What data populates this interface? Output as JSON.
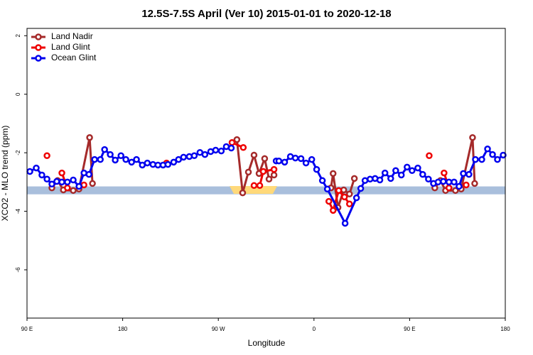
{
  "chart_data": {
    "type": "line",
    "title": "12.5S-7.5S April (Ver 10)   2015-01-01 to 2020-12-18",
    "xlabel": "Longitude",
    "ylabel": "XCO2 - MLO trend (ppm)",
    "xlim": [
      90,
      540
    ],
    "ylim": [
      -7.65,
      2.25
    ],
    "xticks": [
      {
        "value": 90,
        "label": "90 E"
      },
      180,
      {
        "value": 270,
        "label": "90 W"
      },
      {
        "value": 360,
        "label": "0"
      },
      {
        "value": 450,
        "label": "90 E"
      },
      {
        "value": 540,
        "label": "180"
      }
    ],
    "yticks": [
      2,
      0,
      -2,
      -4,
      -6
    ],
    "band": [
      -3.42,
      -3.15
    ],
    "band_color": "#a9bfdc",
    "legend": "top-left",
    "series": [
      {
        "name": "Land Nadir",
        "color": "#a52a2a",
        "x": [
          113.4,
          118.8,
          124.2,
          133.5,
          138.9,
          148.9,
          151.6,
          null,
          287.5,
          292.9,
          298.3,
          303.6,
          308.3,
          313.6,
          317.7,
          322.4,
          null,
          376,
          378,
          382.6,
          388,
          393.4,
          398,
          null,
          473.7,
          479,
          483.8,
          493.1,
          498.5,
          509.2,
          511.2
        ],
        "values": [
          -3.2,
          -2.95,
          -3.27,
          -3.29,
          -3.24,
          -1.48,
          -3.05,
          null,
          -1.55,
          -3.37,
          -2.66,
          -2.08,
          -2.71,
          -2.2,
          -2.9,
          -2.76,
          null,
          -3.2,
          -2.71,
          -3.87,
          -3.27,
          -3.41,
          -2.88,
          null,
          -3.2,
          -2.95,
          -3.29,
          -3.29,
          -3.24,
          -1.48,
          -3.05
        ]
      },
      {
        "name": "Land Glint",
        "color": "#ee0000",
        "x": [
          108.8,
          null,
          122.8,
          128,
          null,
          143.6,
          null,
          221.3,
          null,
          282.9,
          293.5,
          null,
          303.6,
          309,
          312.3,
          322.4,
          null,
          374,
          378,
          383.3,
          388.7,
          393.4,
          null,
          468.4,
          null,
          482.4,
          487,
          null,
          503.2
        ],
        "values": [
          -2.1,
          null,
          -2.69,
          -3.2,
          null,
          -3.1,
          null,
          -2.35,
          null,
          -1.65,
          -1.82,
          null,
          -3.12,
          -3.12,
          -2.64,
          -2.57,
          null,
          -3.66,
          -3.97,
          -3.29,
          -3.51,
          -3.75,
          null,
          -2.1,
          null,
          -2.69,
          -3.2,
          null,
          -3.1
        ]
      },
      {
        "name": "Ocean Glint",
        "color": "#0000ee",
        "x": [
          92.7,
          98.7,
          104,
          108.8,
          113.4,
          118,
          122.8,
          128,
          133.5,
          138.9,
          143.6,
          148.3,
          153.6,
          159,
          163,
          168.3,
          173,
          178.4,
          183,
          188.4,
          193,
          198.5,
          203.2,
          208.5,
          213.2,
          218,
          222.6,
          228,
          232.6,
          237.3,
          242.7,
          247.4,
          252.7,
          257.4,
          262.8,
          267.5,
          272.8,
          277.5,
          282.2,
          null,
          324.4,
          327,
          332.4,
          337.8,
          342.5,
          347.8,
          352.5,
          357.9,
          362.5,
          367.9,
          372.6,
          389.3,
          400,
          404,
          408,
          412.8,
          417.5,
          422,
          426.8,
          432.2,
          436.9,
          442.2,
          447.6,
          452.3,
          457.7,
          462.3,
          467.7,
          472.4,
          476.8,
          481.7,
          487,
          491.8,
          496.5,
          500.5,
          505.8,
          511.9,
          517.9,
          523.3,
          528,
          532.6,
          538
        ],
        "values": [
          -2.64,
          -2.52,
          -2.76,
          -2.9,
          -3.07,
          -2.98,
          -3.0,
          -3.0,
          -2.93,
          -3.15,
          -2.69,
          -2.74,
          -2.23,
          -2.23,
          -1.89,
          -2.06,
          -2.25,
          -2.1,
          -2.23,
          -2.32,
          -2.23,
          -2.42,
          -2.35,
          -2.4,
          -2.42,
          -2.42,
          -2.4,
          -2.32,
          -2.23,
          -2.15,
          -2.13,
          -2.1,
          -1.99,
          -2.06,
          -1.96,
          -1.91,
          -1.94,
          -1.79,
          -1.84,
          null,
          -2.28,
          -2.28,
          -2.32,
          -2.13,
          -2.18,
          -2.2,
          -2.35,
          -2.23,
          -2.57,
          -2.95,
          -3.24,
          -4.41,
          -3.54,
          -3.22,
          -2.95,
          -2.9,
          -2.88,
          -2.93,
          -2.69,
          -2.88,
          -2.61,
          -2.76,
          -2.49,
          -2.61,
          -2.52,
          -2.74,
          -2.9,
          -3.05,
          -3.0,
          -2.98,
          -3.0,
          -3.0,
          -3.15,
          -2.71,
          -2.74,
          -2.23,
          -2.23,
          -1.87,
          -2.06,
          -2.23,
          -2.08
        ]
      }
    ]
  }
}
